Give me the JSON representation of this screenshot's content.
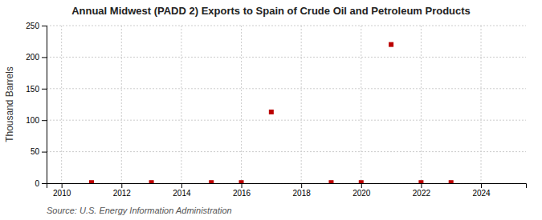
{
  "chart_data": {
    "type": "scatter",
    "title": "Annual Midwest (PADD 2) Exports to Spain of Crude Oil and Petroleum Products",
    "ylabel": "Thousand Barrels",
    "annotation": "Source: U.S. Energy Information Administration",
    "x": [
      2011,
      2013,
      2015,
      2016,
      2017,
      2019,
      2020,
      2021,
      2022,
      2023
    ],
    "values": [
      1,
      1,
      1,
      1,
      113,
      1,
      1,
      220,
      1,
      1
    ],
    "color": "#bb0000",
    "marker": "square",
    "xlim": [
      2009.5,
      2025.5
    ],
    "ylim": [
      0,
      250
    ],
    "xticks": [
      2010,
      2012,
      2014,
      2016,
      2018,
      2020,
      2022,
      2024
    ],
    "yticks": [
      0,
      50,
      100,
      150,
      200,
      250
    ],
    "grid": true
  }
}
